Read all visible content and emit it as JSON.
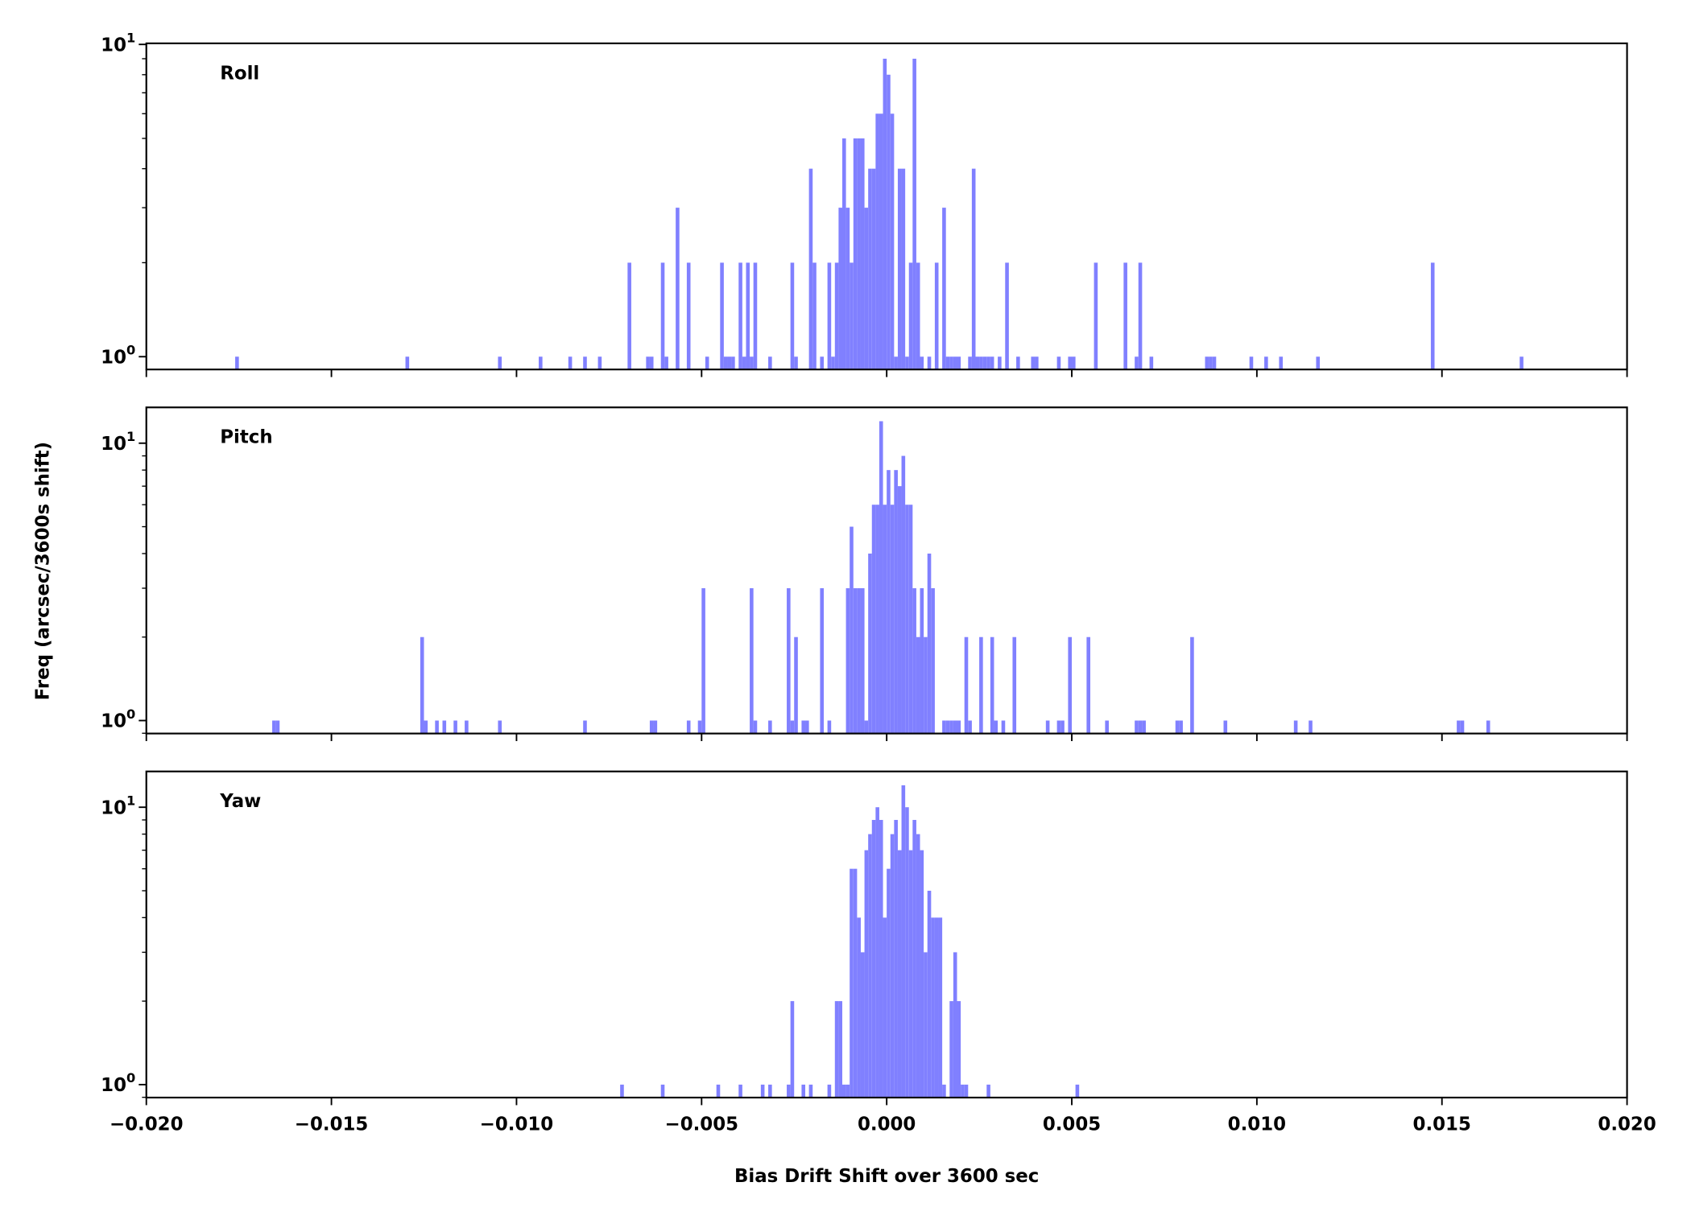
{
  "chart_data": {
    "type": "bar",
    "xlabel": "Bias Drift Shift over 3600 sec",
    "ylabel": "Freq (arcsec/3600s shift)",
    "xlim": [
      -0.02,
      0.02
    ],
    "xticks": [
      "−0.020",
      "−0.015",
      "−0.010",
      "−0.005",
      "0.000",
      "0.005",
      "0.010",
      "0.015",
      "0.020"
    ],
    "xtick_values": [
      -0.02,
      -0.015,
      -0.01,
      -0.005,
      0,
      0.005,
      0.01,
      0.015,
      0.02
    ],
    "yscale": "log",
    "bin_width": 0.0001,
    "bar_color": "#8080ff",
    "grid": false,
    "panels": [
      {
        "title": "Roll",
        "ylim": [
          0.91,
          10.08
        ],
        "yticks": [
          {
            "base": "10",
            "exp": "0",
            "value": 1
          },
          {
            "base": "10",
            "exp": "1",
            "value": 10
          }
        ],
        "bins": [
          [
            -0.0176,
            1
          ],
          [
            -0.013,
            1
          ],
          [
            -0.0105,
            1
          ],
          [
            -0.0094,
            1
          ],
          [
            -0.0086,
            1
          ],
          [
            -0.0082,
            1
          ],
          [
            -0.0078,
            1
          ],
          [
            -0.007,
            2
          ],
          [
            -0.0065,
            1
          ],
          [
            -0.0064,
            1
          ],
          [
            -0.0061,
            2
          ],
          [
            -0.006,
            1
          ],
          [
            -0.0057,
            3
          ],
          [
            -0.0054,
            2
          ],
          [
            -0.0049,
            1
          ],
          [
            -0.0045,
            2
          ],
          [
            -0.0044,
            1
          ],
          [
            -0.0043,
            1
          ],
          [
            -0.0042,
            1
          ],
          [
            -0.004,
            2
          ],
          [
            -0.0039,
            1
          ],
          [
            -0.0038,
            2
          ],
          [
            -0.0037,
            1
          ],
          [
            -0.0036,
            2
          ],
          [
            -0.0032,
            1
          ],
          [
            -0.0026,
            2
          ],
          [
            -0.0025,
            1
          ],
          [
            -0.0021,
            4
          ],
          [
            -0.002,
            2
          ],
          [
            -0.0018,
            1
          ],
          [
            -0.0016,
            2
          ],
          [
            -0.0015,
            1
          ],
          [
            -0.0014,
            2
          ],
          [
            -0.0013,
            3
          ],
          [
            -0.0012,
            5
          ],
          [
            -0.0011,
            3
          ],
          [
            -0.001,
            2
          ],
          [
            -0.0009,
            5
          ],
          [
            -0.0008,
            5
          ],
          [
            -0.0007,
            5
          ],
          [
            -0.0006,
            3
          ],
          [
            -0.0005,
            4
          ],
          [
            -0.0004,
            4
          ],
          [
            -0.0003,
            6
          ],
          [
            -0.0002,
            6
          ],
          [
            -0.0001,
            9
          ],
          [
            0.0,
            8
          ],
          [
            0.0001,
            6
          ],
          [
            0.0002,
            1
          ],
          [
            0.0003,
            4
          ],
          [
            0.0004,
            4
          ],
          [
            0.0005,
            1
          ],
          [
            0.0006,
            2
          ],
          [
            0.0007,
            9
          ],
          [
            0.0008,
            2
          ],
          [
            0.0009,
            1
          ],
          [
            0.0011,
            1
          ],
          [
            0.0013,
            2
          ],
          [
            0.0015,
            3
          ],
          [
            0.0016,
            1
          ],
          [
            0.0017,
            1
          ],
          [
            0.0018,
            1
          ],
          [
            0.0019,
            1
          ],
          [
            0.0022,
            1
          ],
          [
            0.0023,
            4
          ],
          [
            0.0024,
            1
          ],
          [
            0.0025,
            1
          ],
          [
            0.0026,
            1
          ],
          [
            0.0027,
            1
          ],
          [
            0.0028,
            1
          ],
          [
            0.003,
            1
          ],
          [
            0.0032,
            2
          ],
          [
            0.0035,
            1
          ],
          [
            0.0039,
            1
          ],
          [
            0.004,
            1
          ],
          [
            0.0046,
            1
          ],
          [
            0.0049,
            1
          ],
          [
            0.005,
            1
          ],
          [
            0.0056,
            2
          ],
          [
            0.0064,
            2
          ],
          [
            0.0067,
            1
          ],
          [
            0.0068,
            2
          ],
          [
            0.0071,
            1
          ],
          [
            0.0086,
            1
          ],
          [
            0.0087,
            1
          ],
          [
            0.0088,
            1
          ],
          [
            0.0098,
            1
          ],
          [
            0.0102,
            1
          ],
          [
            0.0106,
            1
          ],
          [
            0.0116,
            1
          ],
          [
            0.0147,
            2
          ],
          [
            0.0171,
            1
          ]
        ]
      },
      {
        "title": "Pitch",
        "ylim": [
          0.898,
          13.46
        ],
        "yticks": [
          {
            "base": "10",
            "exp": "0",
            "value": 1
          },
          {
            "base": "10",
            "exp": "1",
            "value": 10
          }
        ],
        "bins": [
          [
            -0.0166,
            1
          ],
          [
            -0.0165,
            1
          ],
          [
            -0.0126,
            2
          ],
          [
            -0.0125,
            1
          ],
          [
            -0.0122,
            1
          ],
          [
            -0.012,
            1
          ],
          [
            -0.0117,
            1
          ],
          [
            -0.0114,
            1
          ],
          [
            -0.0105,
            1
          ],
          [
            -0.0082,
            1
          ],
          [
            -0.0064,
            1
          ],
          [
            -0.0063,
            1
          ],
          [
            -0.0054,
            1
          ],
          [
            -0.0051,
            1
          ],
          [
            -0.005,
            3
          ],
          [
            -0.0037,
            3
          ],
          [
            -0.0036,
            1
          ],
          [
            -0.0032,
            1
          ],
          [
            -0.0027,
            3
          ],
          [
            -0.0026,
            1
          ],
          [
            -0.0025,
            2
          ],
          [
            -0.0023,
            1
          ],
          [
            -0.0022,
            1
          ],
          [
            -0.0018,
            3
          ],
          [
            -0.0016,
            1
          ],
          [
            -0.0011,
            3
          ],
          [
            -0.001,
            5
          ],
          [
            -0.0009,
            3
          ],
          [
            -0.0008,
            3
          ],
          [
            -0.0007,
            3
          ],
          [
            -0.0006,
            1
          ],
          [
            -0.0005,
            4
          ],
          [
            -0.0004,
            6
          ],
          [
            -0.0003,
            6
          ],
          [
            -0.0002,
            12
          ],
          [
            -0.0001,
            6
          ],
          [
            0.0,
            8
          ],
          [
            0.0001,
            6
          ],
          [
            0.0002,
            8
          ],
          [
            0.0003,
            7
          ],
          [
            0.0004,
            9
          ],
          [
            0.0005,
            6
          ],
          [
            0.0006,
            6
          ],
          [
            0.0007,
            3
          ],
          [
            0.0008,
            2
          ],
          [
            0.0009,
            3
          ],
          [
            0.001,
            2
          ],
          [
            0.0011,
            4
          ],
          [
            0.0012,
            3
          ],
          [
            0.0015,
            1
          ],
          [
            0.0016,
            1
          ],
          [
            0.0017,
            1
          ],
          [
            0.0018,
            1
          ],
          [
            0.0019,
            1
          ],
          [
            0.0021,
            2
          ],
          [
            0.0022,
            1
          ],
          [
            0.0025,
            2
          ],
          [
            0.0028,
            2
          ],
          [
            0.0029,
            1
          ],
          [
            0.0031,
            1
          ],
          [
            0.0034,
            2
          ],
          [
            0.0043,
            1
          ],
          [
            0.0046,
            1
          ],
          [
            0.0047,
            1
          ],
          [
            0.0049,
            2
          ],
          [
            0.0054,
            2
          ],
          [
            0.0059,
            1
          ],
          [
            0.0067,
            1
          ],
          [
            0.0068,
            1
          ],
          [
            0.0069,
            1
          ],
          [
            0.0078,
            1
          ],
          [
            0.0079,
            1
          ],
          [
            0.0082,
            2
          ],
          [
            0.0091,
            1
          ],
          [
            0.011,
            1
          ],
          [
            0.0114,
            1
          ],
          [
            0.0154,
            1
          ],
          [
            0.0155,
            1
          ],
          [
            0.0162,
            1
          ]
        ]
      },
      {
        "title": "Yaw",
        "ylim": [
          0.898,
          13.46
        ],
        "yticks": [
          {
            "base": "10",
            "exp": "0",
            "value": 1
          },
          {
            "base": "10",
            "exp": "1",
            "value": 10
          }
        ],
        "bins": [
          [
            -0.0072,
            1
          ],
          [
            -0.0061,
            1
          ],
          [
            -0.0046,
            1
          ],
          [
            -0.004,
            1
          ],
          [
            -0.0034,
            1
          ],
          [
            -0.0032,
            1
          ],
          [
            -0.0027,
            1
          ],
          [
            -0.0026,
            2
          ],
          [
            -0.0023,
            1
          ],
          [
            -0.0021,
            1
          ],
          [
            -0.0016,
            1
          ],
          [
            -0.0014,
            2
          ],
          [
            -0.0013,
            2
          ],
          [
            -0.0012,
            1
          ],
          [
            -0.0011,
            1
          ],
          [
            -0.001,
            6
          ],
          [
            -0.0009,
            6
          ],
          [
            -0.0008,
            4
          ],
          [
            -0.0007,
            3
          ],
          [
            -0.0006,
            7
          ],
          [
            -0.0005,
            8
          ],
          [
            -0.0004,
            9
          ],
          [
            -0.0003,
            10
          ],
          [
            -0.0002,
            9
          ],
          [
            -0.0001,
            4
          ],
          [
            0.0,
            6
          ],
          [
            0.0001,
            8
          ],
          [
            0.0002,
            9
          ],
          [
            0.0003,
            7
          ],
          [
            0.0004,
            12
          ],
          [
            0.0005,
            10
          ],
          [
            0.0006,
            7
          ],
          [
            0.0007,
            9
          ],
          [
            0.0008,
            8
          ],
          [
            0.0009,
            7
          ],
          [
            0.001,
            3
          ],
          [
            0.0011,
            5
          ],
          [
            0.0012,
            4
          ],
          [
            0.0013,
            4
          ],
          [
            0.0014,
            4
          ],
          [
            0.0015,
            1
          ],
          [
            0.0017,
            2
          ],
          [
            0.0018,
            3
          ],
          [
            0.0019,
            2
          ],
          [
            0.002,
            1
          ],
          [
            0.0021,
            1
          ],
          [
            0.0027,
            1
          ],
          [
            0.0051,
            1
          ]
        ]
      }
    ]
  }
}
